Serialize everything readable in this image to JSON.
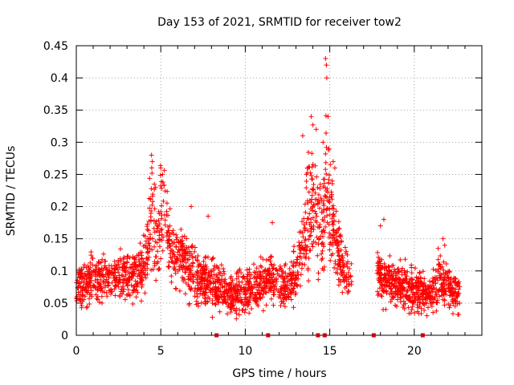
{
  "chart_data": {
    "type": "scatter",
    "title": "Day 153 of 2021, SRMTID for receiver tow2",
    "xlabel": "GPS time / hours",
    "ylabel": "SRMTID / TECUs",
    "xlim": [
      0,
      24
    ],
    "ylim": [
      0,
      0.45
    ],
    "grid": true,
    "x_ticks": [
      0,
      5,
      10,
      15,
      20
    ],
    "x_tick_labels": [
      "0",
      "5",
      "10",
      "15",
      "20"
    ],
    "y_ticks": [
      0,
      0.05,
      0.1,
      0.15,
      0.2,
      0.25,
      0.3,
      0.35,
      0.4,
      0.45
    ],
    "y_tick_labels": [
      "0",
      "0.05",
      "0.1",
      "0.15",
      "0.2",
      "0.25",
      "0.3",
      "0.35",
      "0.4",
      "0.45"
    ],
    "series": [
      {
        "name": "SRMTID",
        "marker": "+",
        "color": "#ff0000",
        "x_range": [
          0.0,
          22.7
        ],
        "gap": [
          16.3,
          17.8
        ],
        "envelope": [
          [
            0.0,
            0.075,
            0.03
          ],
          [
            0.5,
            0.08,
            0.03
          ],
          [
            1.0,
            0.085,
            0.03
          ],
          [
            1.5,
            0.085,
            0.03
          ],
          [
            2.0,
            0.09,
            0.03
          ],
          [
            2.5,
            0.095,
            0.03
          ],
          [
            3.0,
            0.09,
            0.03
          ],
          [
            3.5,
            0.095,
            0.035
          ],
          [
            4.0,
            0.1,
            0.04
          ],
          [
            4.3,
            0.15,
            0.06
          ],
          [
            4.5,
            0.2,
            0.07
          ],
          [
            4.8,
            0.14,
            0.05
          ],
          [
            5.0,
            0.18,
            0.06
          ],
          [
            5.2,
            0.2,
            0.06
          ],
          [
            5.5,
            0.14,
            0.04
          ],
          [
            6.0,
            0.12,
            0.04
          ],
          [
            6.5,
            0.11,
            0.04
          ],
          [
            7.0,
            0.09,
            0.04
          ],
          [
            7.5,
            0.085,
            0.035
          ],
          [
            8.0,
            0.08,
            0.035
          ],
          [
            8.5,
            0.07,
            0.03
          ],
          [
            9.0,
            0.06,
            0.025
          ],
          [
            9.5,
            0.065,
            0.03
          ],
          [
            10.0,
            0.07,
            0.03
          ],
          [
            10.5,
            0.075,
            0.03
          ],
          [
            11.0,
            0.08,
            0.03
          ],
          [
            11.5,
            0.09,
            0.035
          ],
          [
            12.0,
            0.08,
            0.03
          ],
          [
            12.5,
            0.075,
            0.03
          ],
          [
            13.0,
            0.09,
            0.04
          ],
          [
            13.3,
            0.12,
            0.05
          ],
          [
            13.6,
            0.18,
            0.07
          ],
          [
            14.0,
            0.22,
            0.08
          ],
          [
            14.3,
            0.17,
            0.07
          ],
          [
            14.6,
            0.15,
            0.06
          ],
          [
            14.8,
            0.26,
            0.09
          ],
          [
            15.0,
            0.18,
            0.07
          ],
          [
            15.3,
            0.15,
            0.05
          ],
          [
            15.6,
            0.12,
            0.04
          ],
          [
            16.0,
            0.1,
            0.035
          ],
          [
            16.3,
            0.09,
            0.03
          ],
          [
            17.8,
            0.1,
            0.04
          ],
          [
            18.0,
            0.09,
            0.035
          ],
          [
            18.5,
            0.085,
            0.03
          ],
          [
            19.0,
            0.08,
            0.03
          ],
          [
            19.5,
            0.075,
            0.03
          ],
          [
            20.0,
            0.07,
            0.03
          ],
          [
            20.5,
            0.07,
            0.03
          ],
          [
            21.0,
            0.06,
            0.025
          ],
          [
            21.5,
            0.09,
            0.04
          ],
          [
            22.0,
            0.075,
            0.03
          ],
          [
            22.7,
            0.065,
            0.025
          ]
        ],
        "highlights": [
          [
            4.45,
            0.28
          ],
          [
            4.5,
            0.27
          ],
          [
            5.0,
            0.26
          ],
          [
            5.1,
            0.25
          ],
          [
            13.4,
            0.31
          ],
          [
            13.9,
            0.34
          ],
          [
            14.2,
            0.32
          ],
          [
            14.6,
            0.3
          ],
          [
            14.75,
            0.43
          ],
          [
            14.8,
            0.42
          ],
          [
            14.82,
            0.4
          ],
          [
            14.9,
            0.34
          ],
          [
            14.95,
            0.29
          ],
          [
            15.2,
            0.27
          ],
          [
            15.3,
            0.26
          ],
          [
            21.7,
            0.15
          ],
          [
            21.8,
            0.14
          ],
          [
            6.8,
            0.2
          ],
          [
            7.8,
            0.185
          ],
          [
            11.6,
            0.175
          ],
          [
            18.0,
            0.17
          ],
          [
            18.2,
            0.18
          ]
        ],
        "point_count": 2500
      },
      {
        "name": "gaps",
        "marker": "square",
        "color": "#cc0000",
        "x": [
          8.3,
          11.35,
          14.3,
          14.7,
          17.6,
          20.5
        ],
        "y": [
          0,
          0,
          0,
          0,
          0,
          0
        ]
      }
    ]
  }
}
